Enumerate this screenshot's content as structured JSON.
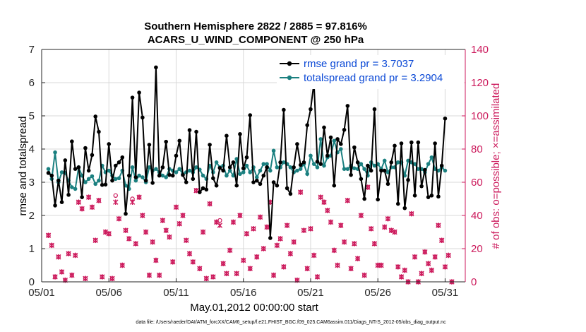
{
  "chart_data": {
    "type": "line",
    "title": "Southern Hemisphere 2822 / 2885 = 97.816%",
    "subtitle": "ACARS_U_WIND_COMPONENT @ 250 hPa",
    "xlabel": "May.01,2012 00:00:00 start",
    "ylabel": "rmse and totalspread",
    "ylabel_right": "# of obs: o=possible; ×=assimilated",
    "footnote": "data file: /Users/raeder/DAI/ATM_forcXX/CAM6_setup/f.e21.FHIST_BGC.f09_025.CAM6assim.011/Diags_NTrS_2012-05/obs_diag_output.nc",
    "xlim": [
      0,
      31.5
    ],
    "ylim": [
      0,
      7
    ],
    "ylim_right": [
      0,
      140
    ],
    "xticks": [
      0,
      5,
      10,
      15,
      20,
      25,
      30
    ],
    "xtick_labels": [
      "05/01",
      "05/06",
      "05/11",
      "05/16",
      "05/21",
      "05/26",
      "05/31"
    ],
    "yticks": [
      0,
      1,
      2,
      3,
      4,
      5,
      6,
      7
    ],
    "yticks_right": [
      0,
      20,
      40,
      60,
      80,
      100,
      120,
      140
    ],
    "colors": {
      "rmse": "#000000",
      "spread": "#1b8080",
      "obs": "#cc1a5c",
      "legend_text": "#0a48d6"
    },
    "series": [
      {
        "name": "rmse grand pr = 3.7037",
        "values": [
          3.28,
          3.2,
          2.3,
          3.05,
          2.4,
          3.66,
          2.62,
          4.23,
          3.4,
          3.45,
          2.55,
          4.03,
          3.35,
          3.82,
          4.98,
          4.52,
          2.92,
          2.93,
          4.15,
          3.05,
          3.5,
          3.6,
          3.75,
          2.05,
          3.2,
          5.55,
          3.15,
          5.7,
          4.95,
          3.05,
          4.13,
          2.98,
          6.46,
          3.2,
          3.45,
          4.22,
          3.22,
          3.2,
          3.8,
          4.25,
          3.22,
          3.0,
          4.57,
          3.1,
          4.52,
          2.7,
          2.82,
          2.78,
          4.13,
          3.12,
          2.9,
          3.43,
          3.35,
          4.4,
          3.45,
          3.6,
          2.9,
          4.45,
          3.42,
          3.75,
          5.02,
          3.0,
          3.05,
          2.95,
          3.2,
          3.45,
          1.32,
          3.0,
          2.9,
          3.6,
          5.18,
          2.82,
          2.65,
          3.45,
          4.15,
          3.52,
          3.6,
          4.72,
          5.2,
          6.0,
          3.62,
          3.55,
          4.65,
          3.8,
          4.35,
          2.9,
          4.3,
          4.15,
          4.58,
          5.3,
          3.22,
          4.05,
          3.6,
          3.1,
          2.5,
          3.5,
          3.35,
          5.2,
          2.48,
          3.35,
          3.35,
          2.95,
          3.6,
          4.1,
          2.35,
          4.17,
          2.22,
          3.07,
          4.2,
          2.6,
          4.2,
          2.88,
          3.37,
          2.55,
          2.6,
          4.17,
          2.57,
          3.5,
          4.92
        ],
        "color": "#000000"
      },
      {
        "name": "totalspread grand pr = 3.2904",
        "values": [
          3.4,
          3.1,
          3.9,
          3.0,
          3.3,
          3.28,
          3.05,
          2.85,
          2.8,
          3.45,
          3.2,
          3.0,
          3.1,
          3.18,
          2.95,
          3.05,
          3.5,
          3.3,
          3.35,
          3.2,
          3.1,
          3.12,
          3.35,
          2.9,
          2.8,
          3.45,
          3.05,
          3.2,
          3.15,
          3.0,
          3.45,
          3.35,
          3.4,
          3.3,
          3.2,
          3.15,
          3.4,
          3.35,
          3.3,
          3.4,
          3.25,
          3.3,
          3.35,
          3.3,
          3.45,
          3.38,
          3.2,
          3.1,
          3.5,
          3.3,
          3.6,
          3.45,
          3.5,
          3.2,
          3.35,
          3.2,
          3.7,
          3.25,
          3.3,
          3.5,
          3.3,
          3.45,
          3.15,
          3.35,
          3.55,
          3.55,
          3.35,
          3.95,
          3.45,
          3.45,
          3.6,
          3.55,
          3.45,
          3.3,
          3.35,
          3.4,
          3.55,
          3.25,
          3.8,
          3.55,
          3.45,
          4.3,
          3.5,
          3.75,
          3.8,
          4.25,
          3.9,
          4.0,
          3.4,
          3.4,
          3.5,
          3.42,
          3.4,
          3.55,
          3.4,
          3.2,
          3.6,
          3.5,
          3.55,
          3.4,
          3.65,
          3.3,
          3.45,
          3.45,
          3.6,
          3.6,
          3.2,
          3.65,
          3.6,
          3.55,
          3.4,
          3.4,
          3.3,
          3.55,
          3.75,
          3.4,
          3.35,
          3.45,
          3.35
        ],
        "color": "#1b8080"
      },
      {
        "name": "obs possible (o)",
        "values": [
          28,
          22,
          3,
          15,
          6,
          1,
          17,
          4,
          16,
          48,
          44,
          2,
          51,
          45,
          25,
          49,
          3,
          30,
          29,
          2,
          52,
          38,
          10,
          31,
          26,
          50,
          23,
          51,
          40,
          30,
          4,
          24,
          13,
          4,
          37,
          31,
          27,
          12,
          45,
          35,
          40,
          25,
          17,
          12,
          55,
          8,
          30,
          2,
          47,
          3,
          36,
          37,
          11,
          5,
          19,
          36,
          5,
          40,
          13,
          29,
          8,
          32,
          15,
          39,
          20,
          33,
          48,
          4,
          22,
          26,
          9,
          34,
          17,
          24,
          1,
          54,
          31,
          8,
          32,
          16,
          3,
          51,
          48,
          43,
          36,
          19,
          10,
          34,
          24,
          49,
          8,
          23,
          14,
          40,
          4,
          57,
          32,
          23,
          10,
          10,
          33,
          38,
          31,
          30,
          9,
          3,
          7,
          0,
          41,
          15,
          0,
          5,
          18,
          11,
          7,
          15,
          34,
          25,
          9,
          16,
          0
        ],
        "color": "#cc1a5c"
      },
      {
        "name": "obs assimilated (×)",
        "values": [
          28,
          22,
          3,
          15,
          6,
          1,
          17,
          4,
          16,
          48,
          44,
          2,
          51,
          45,
          25,
          49,
          3,
          30,
          29,
          2,
          48,
          38,
          10,
          31,
          26,
          48,
          23,
          51,
          40,
          30,
          4,
          24,
          13,
          4,
          37,
          31,
          27,
          12,
          45,
          35,
          40,
          25,
          17,
          12,
          55,
          8,
          30,
          2,
          47,
          3,
          36,
          34,
          11,
          5,
          19,
          36,
          5,
          40,
          13,
          29,
          8,
          32,
          15,
          39,
          20,
          33,
          48,
          4,
          22,
          26,
          9,
          34,
          17,
          24,
          1,
          54,
          31,
          8,
          32,
          16,
          3,
          51,
          48,
          43,
          36,
          19,
          10,
          34,
          24,
          49,
          8,
          23,
          14,
          40,
          4,
          57,
          32,
          23,
          10,
          10,
          33,
          38,
          31,
          30,
          9,
          3,
          7,
          0,
          41,
          15,
          0,
          5,
          18,
          11,
          7,
          15,
          34,
          25,
          9,
          16,
          0
        ],
        "color": "#cc1a5c"
      }
    ]
  }
}
